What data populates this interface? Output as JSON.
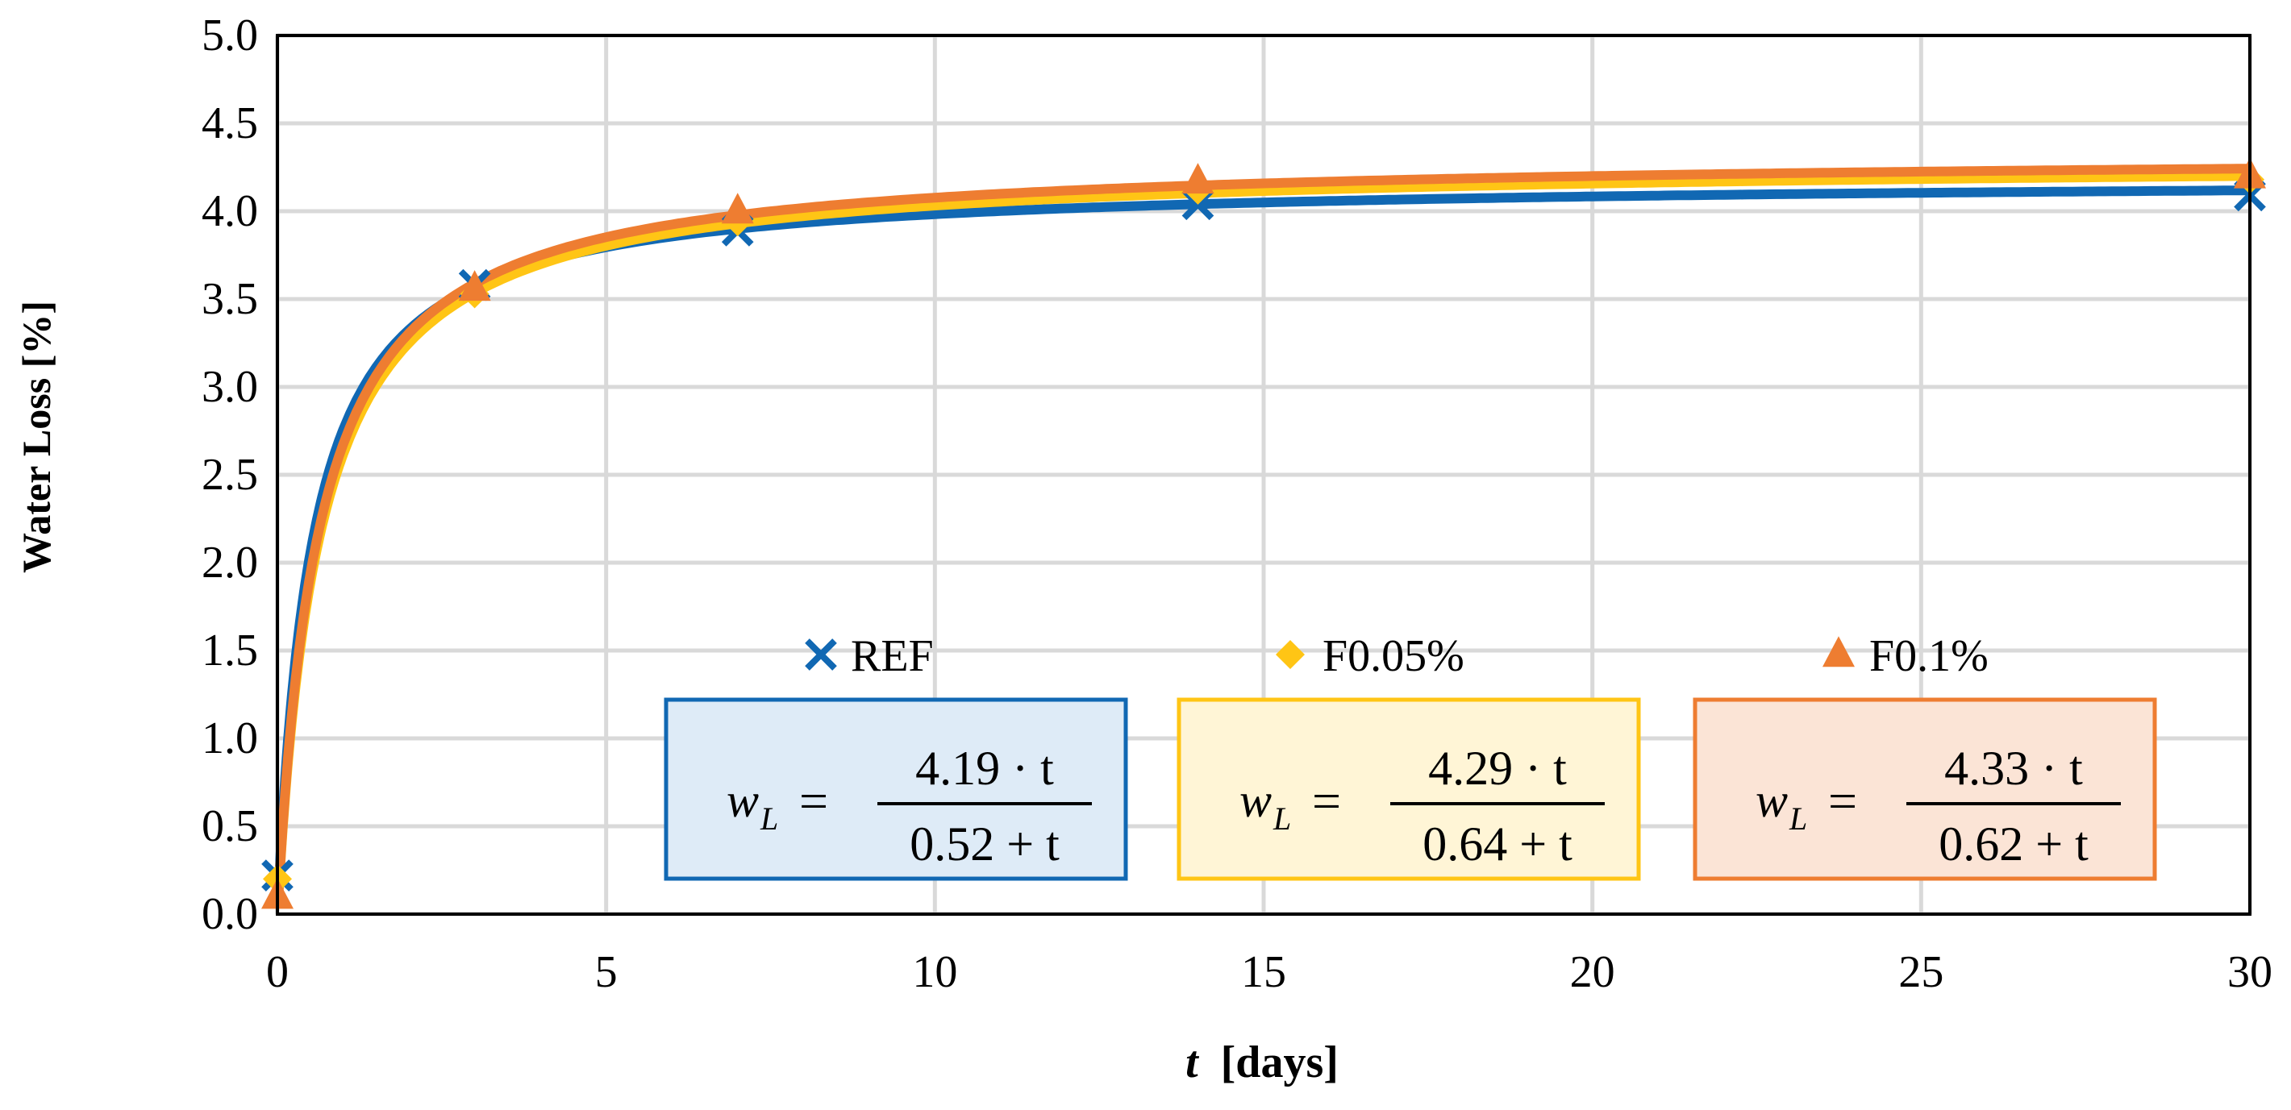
{
  "colors": {
    "ref": "#1168b3",
    "f005": "#ffc515",
    "f01": "#ee7d31",
    "grid": "#d9d9d9",
    "axis": "#000000"
  },
  "chart_data": {
    "type": "line",
    "title": "",
    "xlabel_var": "t",
    "xlabel_unit": "[days]",
    "ylabel": "Water Loss [%]",
    "xlim": [
      0,
      30
    ],
    "ylim": [
      0,
      5
    ],
    "x_ticks": [
      "0",
      "5",
      "10",
      "15",
      "20",
      "25",
      "30"
    ],
    "y_ticks": [
      "0.0",
      "0.5",
      "1.0",
      "1.5",
      "2.0",
      "2.5",
      "3.0",
      "3.5",
      "4.0",
      "4.5",
      "5.0"
    ],
    "grid": true,
    "legend_position": "bottom-center",
    "series": [
      {
        "name": "REF",
        "marker": "x",
        "color": "#1168b3",
        "x": [
          0,
          3,
          7,
          14,
          30
        ],
        "y": [
          0.22,
          3.58,
          3.89,
          4.04,
          4.09
        ],
        "fit": {
          "a": 4.19,
          "b": 0.52
        },
        "equation": {
          "lhs": "w",
          "sub": "L",
          "eq": "=",
          "num": "4.19 · t",
          "den": "0.52 + t"
        }
      },
      {
        "name": "F0.05%",
        "marker": "diamond",
        "color": "#ffc515",
        "x": [
          0,
          3,
          7,
          14,
          30
        ],
        "y": [
          0.2,
          3.53,
          3.94,
          4.12,
          4.18
        ],
        "fit": {
          "a": 4.29,
          "b": 0.64
        },
        "equation": {
          "lhs": "w",
          "sub": "L",
          "eq": "=",
          "num": "4.29 · t",
          "den": "0.64 + t"
        }
      },
      {
        "name": "F0.1%",
        "marker": "triangle",
        "color": "#ee7d31",
        "x": [
          0,
          3,
          7,
          14,
          30
        ],
        "y": [
          0.1,
          3.56,
          4.0,
          4.17,
          4.2
        ],
        "fit": {
          "a": 4.33,
          "b": 0.62
        },
        "equation": {
          "lhs": "w",
          "sub": "L",
          "eq": "=",
          "num": "4.33 · t",
          "den": "0.62 + t"
        }
      }
    ]
  }
}
